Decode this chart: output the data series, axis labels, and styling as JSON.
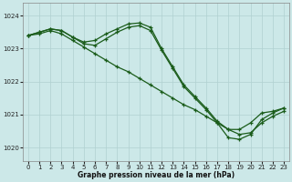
{
  "title": "Graphe pression niveau de la mer (hPa)",
  "background_color": "#cce8e8",
  "grid_color": "#b0d0d0",
  "line_color": "#1a5c1a",
  "marker_color": "#1a5c1a",
  "xlim": [
    -0.5,
    23.5
  ],
  "ylim": [
    1019.6,
    1024.4
  ],
  "yticks": [
    1020,
    1021,
    1022,
    1023,
    1024
  ],
  "xticks": [
    0,
    1,
    2,
    3,
    4,
    5,
    6,
    7,
    8,
    9,
    10,
    11,
    12,
    13,
    14,
    15,
    16,
    17,
    18,
    19,
    20,
    21,
    22,
    23
  ],
  "line1": [
    1023.4,
    1023.5,
    1023.6,
    1023.55,
    1023.35,
    1023.2,
    1023.25,
    1023.45,
    1023.6,
    1023.75,
    1023.78,
    1023.65,
    1023.0,
    1022.45,
    1021.9,
    1021.55,
    1021.2,
    1020.8,
    1020.55,
    1020.55,
    1020.75,
    1021.05,
    1021.1,
    1021.2
  ],
  "line2": [
    1023.4,
    1023.45,
    1023.55,
    1023.45,
    1023.25,
    1023.05,
    1022.85,
    1022.65,
    1022.45,
    1022.3,
    1022.1,
    1021.9,
    1021.7,
    1021.5,
    1021.3,
    1021.15,
    1020.95,
    1020.75,
    1020.55,
    1020.4,
    1020.45,
    1020.75,
    1020.95,
    1021.1
  ],
  "line3": [
    1023.4,
    1023.5,
    1023.6,
    1023.55,
    1023.35,
    1023.15,
    1023.1,
    1023.3,
    1023.5,
    1023.65,
    1023.7,
    1023.55,
    1022.95,
    1022.4,
    1021.85,
    1021.5,
    1021.15,
    1020.75,
    1020.3,
    1020.25,
    1020.4,
    1020.85,
    1021.05,
    1021.2
  ],
  "ylabel_fontsize": 5.5,
  "tick_fontsize": 5,
  "linewidth": 0.9,
  "markersize": 3.5
}
